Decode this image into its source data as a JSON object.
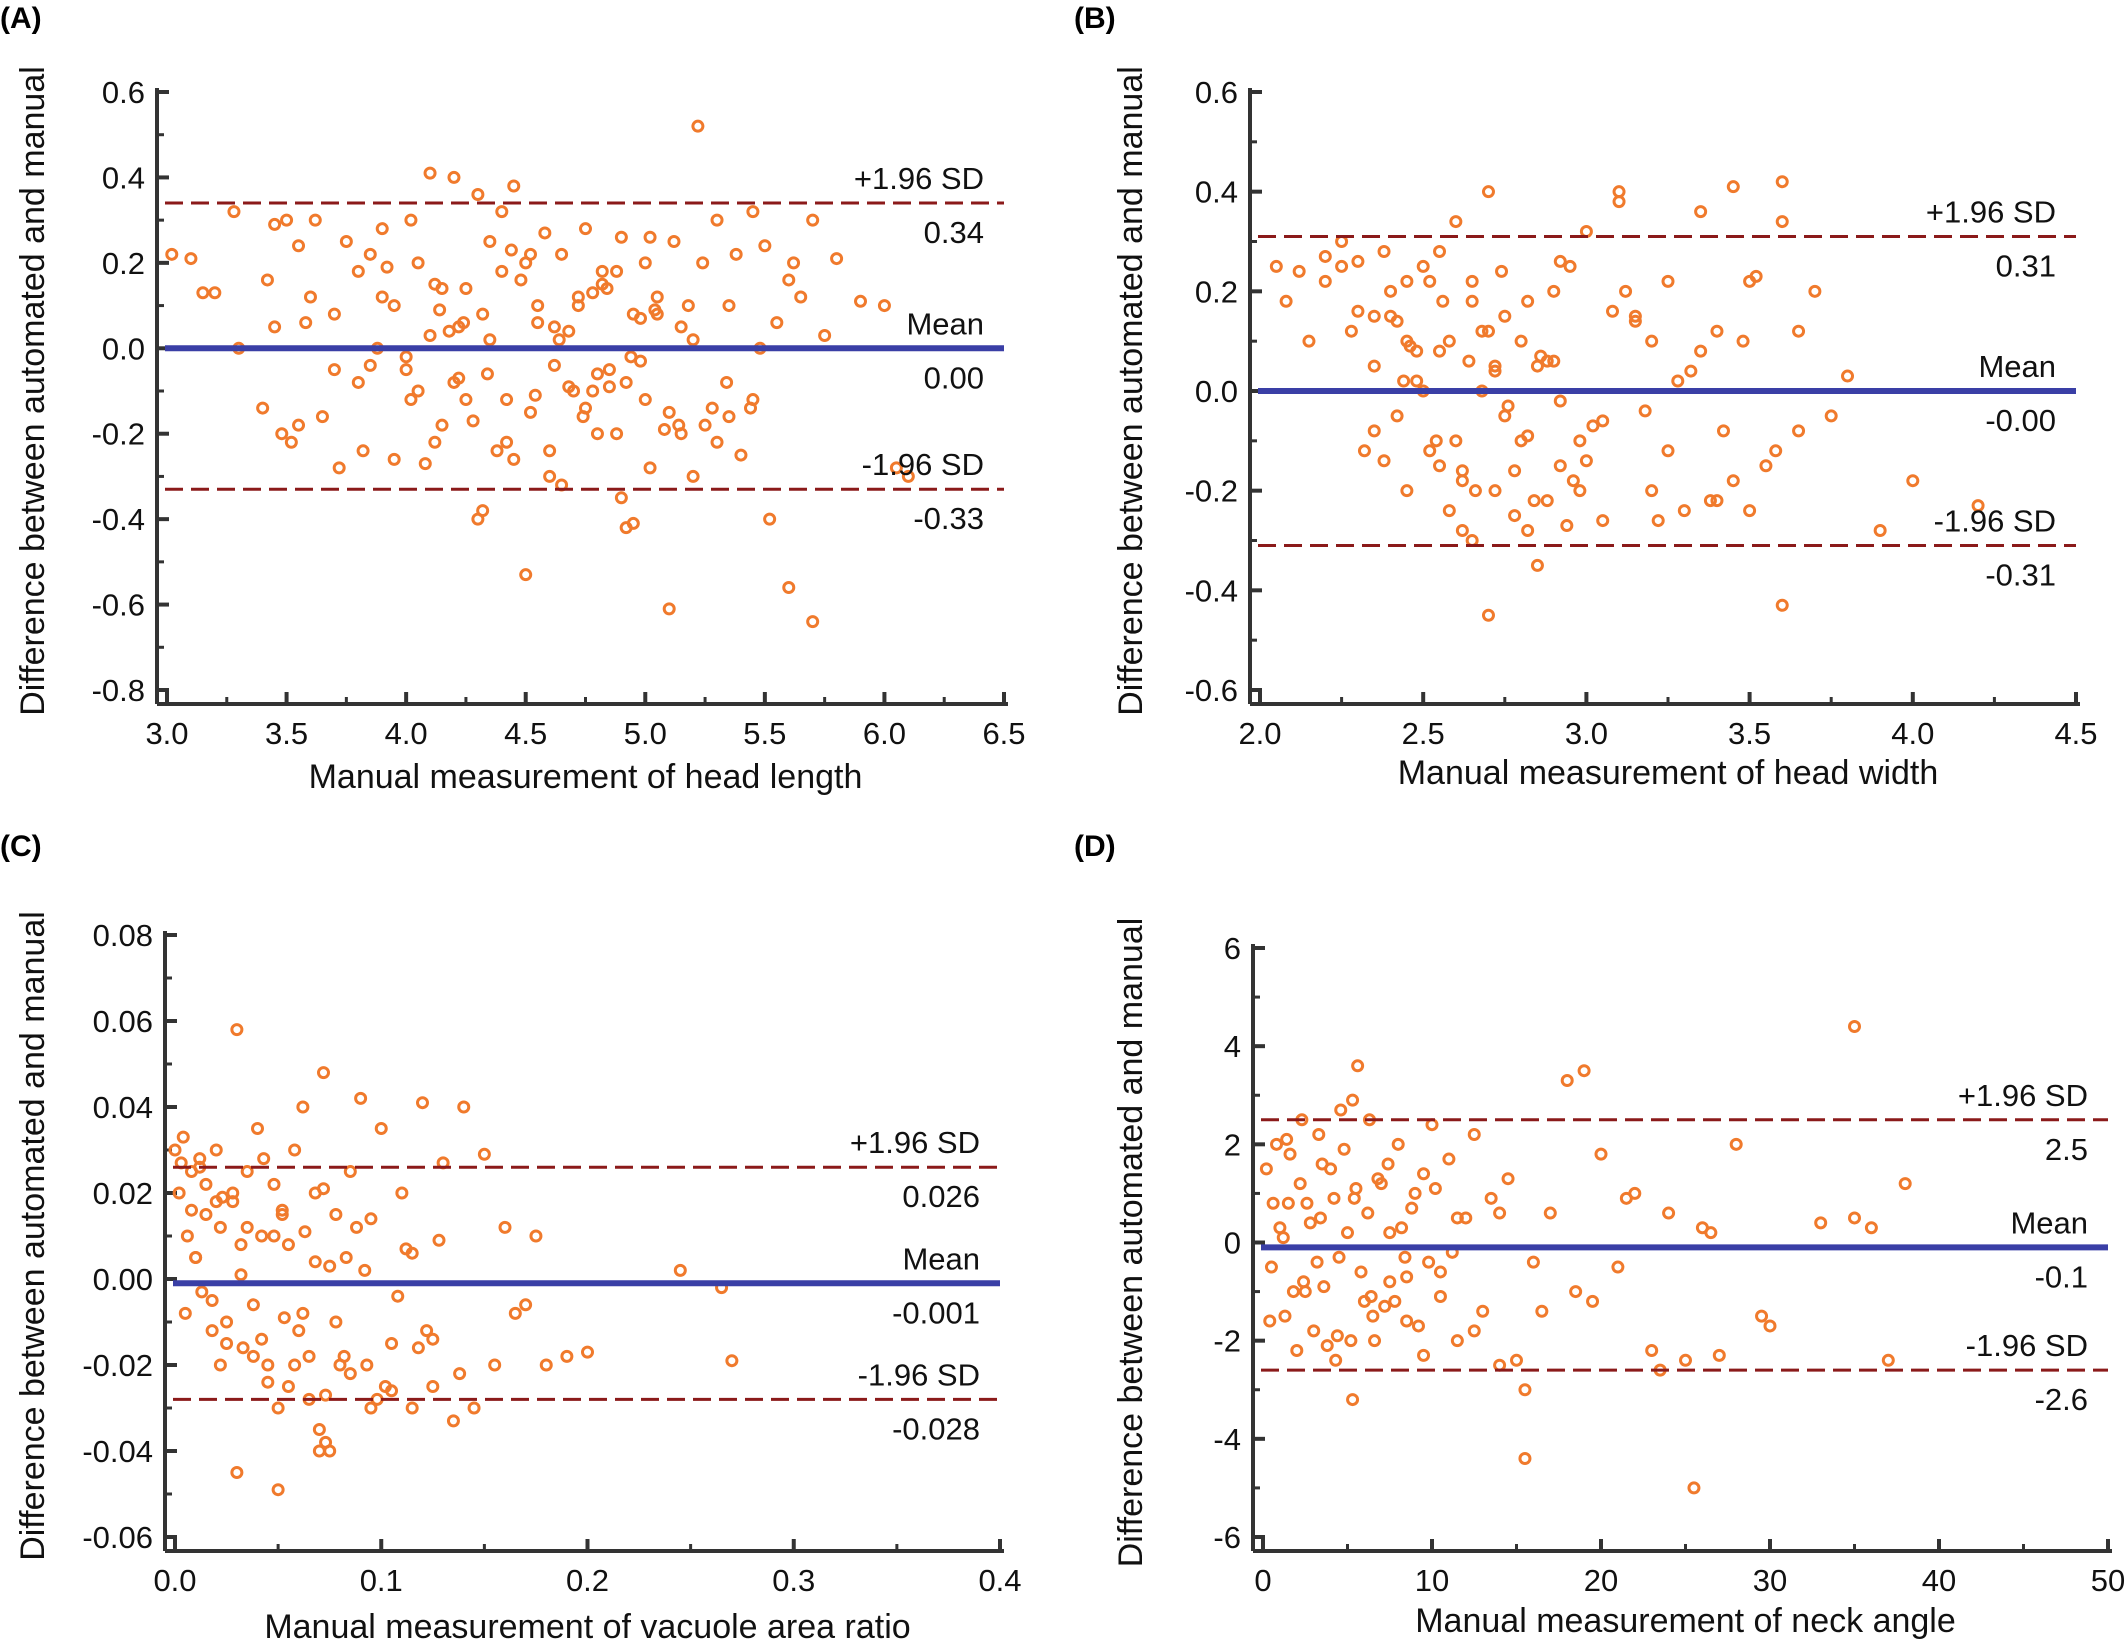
{
  "colors": {
    "points": "#f07a2c",
    "mean_line": "#3a3fa6",
    "sd_line": "#8b1a1a",
    "axis": "#333333"
  },
  "chart_data": [
    {
      "panel": "(A)",
      "type": "scatter",
      "xlabel": "Manual measurement of head length",
      "ylabel": "Difference between automated and manual",
      "xlim": [
        3.0,
        6.5
      ],
      "ylim": [
        -0.8,
        0.6
      ],
      "xticks": [
        "3.0",
        "3.5",
        "4.0",
        "4.5",
        "5.0",
        "5.5",
        "6.0",
        "6.5"
      ],
      "yticks": [
        "-0.8",
        "-0.6",
        "-0.4",
        "-0.2",
        "0.0",
        "0.2",
        "0.4",
        "0.6"
      ],
      "mean": {
        "value": 0.0,
        "label": "Mean",
        "value_label": "0.00"
      },
      "upper_sd": {
        "value": 0.34,
        "label": "+1.96 SD",
        "value_label": "0.34"
      },
      "lower_sd": {
        "value": -0.33,
        "label": "-1.96 SD",
        "value_label": "-0.33"
      },
      "points_x": [
        3.02,
        3.1,
        3.15,
        3.2,
        3.28,
        3.3,
        3.4,
        3.42,
        3.45,
        3.48,
        3.5,
        3.52,
        3.55,
        3.6,
        3.62,
        3.7,
        3.75,
        3.8,
        3.82,
        3.85,
        3.9,
        3.95,
        4.0,
        4.02,
        4.05,
        4.1,
        4.12,
        4.15,
        4.2,
        4.22,
        4.25,
        4.3,
        4.32,
        4.35,
        4.4,
        4.42,
        4.45,
        4.5,
        4.52,
        4.55,
        4.6,
        4.62,
        4.65,
        4.7,
        4.72,
        4.75,
        4.8,
        4.82,
        4.85,
        4.9,
        4.92,
        4.95,
        5.0,
        5.02,
        5.05,
        5.1,
        5.12,
        5.15,
        5.2,
        5.22,
        5.25,
        5.3,
        5.35,
        5.4,
        5.45,
        5.5,
        5.55,
        5.6,
        5.65,
        5.7,
        5.75,
        5.8,
        5.9,
        6.0,
        6.05,
        6.1,
        4.5,
        5.1,
        5.6,
        5.7,
        5.2,
        3.55,
        3.45,
        4.3,
        4.9,
        4.95,
        4.65,
        4.1,
        4.2,
        4.4,
        4.0,
        3.9,
        3.8,
        3.7,
        4.55,
        4.75,
        5.05,
        5.3,
        5.45,
        5.62,
        3.65,
        3.58,
        4.15,
        4.45,
        4.85,
        5.15,
        5.35,
        5.52,
        4.05,
        4.25,
        4.6,
        4.8,
        5.0,
        4.35,
        3.95,
        3.72,
        3.88,
        4.68,
        4.78,
        4.88,
        4.98,
        5.08,
        5.18,
        5.28,
        5.38,
        5.48,
        4.12,
        4.22,
        4.32,
        4.42,
        4.52,
        4.62,
        4.72,
        4.82,
        4.92,
        5.02,
        4.18,
        4.28,
        4.38,
        4.48,
        4.58,
        4.68,
        4.78,
        4.88,
        4.98,
        3.85,
        3.92,
        4.02,
        4.08,
        4.14,
        4.24,
        4.34,
        4.44,
        4.54,
        4.64,
        4.74,
        4.84,
        4.94,
        5.04,
        5.14,
        5.24,
        5.34,
        5.44
      ],
      "points_y": [
        0.22,
        0.21,
        0.13,
        0.13,
        0.32,
        0.0,
        -0.14,
        0.16,
        0.29,
        -0.2,
        0.3,
        -0.22,
        0.24,
        0.12,
        0.3,
        0.08,
        0.25,
        0.18,
        -0.24,
        0.22,
        0.28,
        0.1,
        -0.05,
        0.3,
        0.2,
        0.41,
        0.15,
        -0.18,
        0.4,
        0.05,
        -0.12,
        0.36,
        -0.38,
        0.25,
        0.32,
        -0.22,
        0.38,
        0.2,
        -0.15,
        0.1,
        -0.3,
        0.05,
        0.22,
        -0.1,
        0.12,
        0.28,
        -0.2,
        0.15,
        -0.05,
        0.26,
        -0.42,
        0.08,
        0.2,
        -0.28,
        0.12,
        -0.15,
        0.25,
        0.05,
        -0.3,
        0.52,
        -0.18,
        0.3,
        0.1,
        -0.25,
        0.32,
        0.24,
        0.06,
        0.16,
        0.12,
        0.3,
        0.03,
        0.21,
        0.11,
        0.1,
        -0.28,
        -0.3,
        -0.53,
        -0.61,
        -0.56,
        -0.64,
        0.02,
        -0.18,
        0.05,
        -0.4,
        -0.35,
        -0.41,
        -0.32,
        0.03,
        -0.08,
        0.18,
        -0.02,
        0.12,
        -0.08,
        -0.05,
        0.06,
        -0.14,
        0.08,
        -0.22,
        -0.12,
        0.2,
        -0.16,
        0.06,
        0.14,
        -0.26,
        -0.09,
        -0.2,
        -0.16,
        -0.4,
        -0.1,
        0.14,
        -0.24,
        -0.06,
        -0.12,
        0.02,
        -0.26,
        -0.28,
        0.0,
        0.04,
        -0.1,
        0.18,
        -0.03,
        -0.19,
        0.1,
        -0.14,
        0.22,
        0.0,
        -0.22,
        -0.07,
        0.08,
        -0.12,
        0.22,
        -0.04,
        0.1,
        0.18,
        -0.08,
        0.26,
        0.04,
        -0.17,
        -0.24,
        0.16,
        0.27,
        -0.09,
        0.13,
        -0.2,
        0.07,
        -0.04,
        0.19,
        -0.12,
        -0.27,
        0.09,
        0.06,
        -0.06,
        0.23,
        -0.11,
        0.02,
        -0.16,
        0.14,
        -0.02,
        0.09,
        -0.18,
        0.2,
        -0.08,
        -0.14,
        0.03,
        -0.22,
        0.11,
        -0.05,
        -0.2
      ]
    },
    {
      "panel": "(B)",
      "type": "scatter",
      "xlabel": "Manual measurement of head width",
      "ylabel": "Difference between automated and manual",
      "xlim": [
        2.0,
        4.5
      ],
      "ylim": [
        -0.6,
        0.6
      ],
      "xticks": [
        "2.0",
        "2.5",
        "3.0",
        "3.5",
        "4.0",
        "4.5"
      ],
      "yticks": [
        "-0.6",
        "-0.4",
        "-0.2",
        "0.0",
        "0.2",
        "0.4",
        "0.6"
      ],
      "mean": {
        "value": 0.0,
        "label": "Mean",
        "value_label": "-0.00"
      },
      "upper_sd": {
        "value": 0.31,
        "label": "+1.96 SD",
        "value_label": "0.31"
      },
      "lower_sd": {
        "value": -0.31,
        "label": "-1.96 SD",
        "value_label": "-0.31"
      },
      "points_x": [
        2.05,
        2.08,
        2.12,
        2.15,
        2.2,
        2.25,
        2.28,
        2.3,
        2.35,
        2.38,
        2.4,
        2.42,
        2.45,
        2.48,
        2.5,
        2.52,
        2.55,
        2.58,
        2.6,
        2.62,
        2.65,
        2.68,
        2.7,
        2.72,
        2.75,
        2.78,
        2.8,
        2.82,
        2.85,
        2.88,
        2.9,
        2.92,
        2.95,
        2.98,
        3.0,
        3.05,
        3.1,
        3.15,
        3.2,
        3.25,
        3.3,
        3.35,
        3.4,
        3.45,
        3.5,
        3.55,
        3.6,
        3.65,
        3.7,
        3.75,
        3.8,
        3.9,
        4.0,
        4.2,
        2.7,
        3.1,
        3.45,
        3.6,
        2.65,
        2.85,
        3.6,
        2.35,
        2.45,
        2.55,
        2.6,
        2.7,
        2.75,
        2.5,
        2.4,
        2.3,
        2.2,
        2.55,
        2.65,
        2.8,
        2.9,
        3.0,
        3.2,
        3.4,
        2.25,
        2.35,
        2.45,
        2.62,
        2.72,
        2.82,
        2.92,
        3.05,
        3.15,
        3.25,
        3.35,
        3.5,
        3.65,
        2.38,
        2.48,
        2.58,
        2.68,
        2.78,
        2.88,
        2.98,
        3.08,
        3.18,
        3.28,
        3.38,
        3.48,
        3.58,
        2.42,
        2.52,
        2.62,
        2.72,
        2.82,
        2.92,
        3.02,
        2.46,
        2.56,
        2.66,
        2.76,
        2.86,
        2.96,
        3.12,
        3.22,
        3.32,
        3.42,
        3.52,
        2.32,
        2.44,
        2.54,
        2.64,
        2.74,
        2.84,
        2.94
      ],
      "points_y": [
        0.25,
        0.18,
        0.24,
        0.1,
        0.22,
        0.3,
        0.12,
        0.26,
        0.05,
        0.28,
        0.15,
        -0.05,
        0.22,
        0.08,
        0.25,
        -0.12,
        0.28,
        0.1,
        0.34,
        -0.18,
        0.22,
        0.0,
        0.4,
        -0.2,
        0.15,
        -0.25,
        0.1,
        -0.28,
        0.05,
        -0.22,
        0.2,
        -0.15,
        0.25,
        -0.1,
        0.32,
        -0.26,
        0.38,
        0.15,
        -0.2,
        0.22,
        -0.24,
        0.36,
        0.12,
        -0.18,
        0.22,
        -0.15,
        0.34,
        0.12,
        0.2,
        -0.05,
        0.03,
        -0.28,
        -0.18,
        -0.23,
        -0.45,
        0.4,
        0.41,
        -0.43,
        -0.3,
        -0.35,
        0.42,
        0.15,
        -0.2,
        0.08,
        -0.1,
        0.12,
        -0.05,
        0.0,
        0.2,
        0.16,
        0.27,
        -0.15,
        0.18,
        -0.1,
        0.06,
        -0.14,
        0.1,
        -0.22,
        0.25,
        -0.08,
        0.1,
        -0.16,
        0.05,
        0.18,
        -0.02,
        -0.06,
        0.14,
        -0.12,
        0.08,
        -0.24,
        -0.08,
        -0.14,
        0.02,
        -0.24,
        0.12,
        -0.16,
        0.06,
        -0.2,
        0.16,
        -0.04,
        0.02,
        -0.22,
        0.1,
        -0.12,
        0.14,
        0.22,
        -0.28,
        0.04,
        -0.09,
        0.26,
        -0.07,
        0.09,
        0.18,
        -0.2,
        -0.03,
        0.07,
        -0.18,
        0.2,
        -0.26,
        0.04,
        -0.08,
        0.23,
        -0.12,
        0.02,
        -0.1,
        0.06,
        0.24,
        -0.22,
        -0.27,
        0.13
      ]
    },
    {
      "panel": "(C)",
      "type": "scatter",
      "xlabel": "Manual measurement of vacuole area ratio",
      "ylabel": "Difference between automated and manual",
      "xlim": [
        0.0,
        0.4
      ],
      "ylim": [
        -0.06,
        0.08
      ],
      "xticks": [
        "0.0",
        "0.1",
        "0.2",
        "0.3",
        "0.4"
      ],
      "yticks": [
        "-0.06",
        "-0.04",
        "-0.02",
        "0.00",
        "0.02",
        "0.04",
        "0.06",
        "0.08"
      ],
      "mean": {
        "value": -0.001,
        "label": "Mean",
        "value_label": "-0.001"
      },
      "upper_sd": {
        "value": 0.026,
        "label": "+1.96 SD",
        "value_label": "0.026"
      },
      "lower_sd": {
        "value": -0.028,
        "label": "-1.96 SD",
        "value_label": "-0.028"
      },
      "points_x": [
        0.0,
        0.002,
        0.004,
        0.006,
        0.008,
        0.01,
        0.012,
        0.015,
        0.018,
        0.02,
        0.022,
        0.025,
        0.028,
        0.03,
        0.032,
        0.035,
        0.038,
        0.04,
        0.042,
        0.045,
        0.048,
        0.05,
        0.052,
        0.055,
        0.058,
        0.06,
        0.062,
        0.065,
        0.068,
        0.07,
        0.072,
        0.075,
        0.078,
        0.08,
        0.085,
        0.09,
        0.095,
        0.1,
        0.105,
        0.11,
        0.115,
        0.12,
        0.125,
        0.13,
        0.135,
        0.14,
        0.145,
        0.15,
        0.155,
        0.16,
        0.165,
        0.17,
        0.175,
        0.18,
        0.19,
        0.2,
        0.245,
        0.265,
        0.27,
        0.03,
        0.05,
        0.07,
        0.073,
        0.02,
        0.01,
        0.005,
        0.015,
        0.025,
        0.035,
        0.045,
        0.055,
        0.065,
        0.075,
        0.085,
        0.095,
        0.105,
        0.115,
        0.125,
        0.008,
        0.018,
        0.028,
        0.038,
        0.048,
        0.058,
        0.068,
        0.078,
        0.088,
        0.098,
        0.108,
        0.118,
        0.128,
        0.138,
        0.012,
        0.022,
        0.032,
        0.042,
        0.052,
        0.062,
        0.072,
        0.082,
        0.092,
        0.102,
        0.112,
        0.122,
        0.003,
        0.013,
        0.023,
        0.033,
        0.043,
        0.053,
        0.063,
        0.073,
        0.083,
        0.093
      ],
      "points_y": [
        0.03,
        0.02,
        0.033,
        0.01,
        0.025,
        0.005,
        0.028,
        0.015,
        -0.005,
        0.03,
        0.012,
        -0.01,
        0.02,
        0.058,
        0.008,
        0.025,
        -0.018,
        0.035,
        0.01,
        -0.02,
        0.022,
        -0.03,
        0.015,
        -0.025,
        0.03,
        -0.012,
        0.04,
        -0.028,
        0.02,
        -0.035,
        0.048,
        -0.04,
        0.015,
        -0.02,
        0.025,
        0.042,
        -0.03,
        0.035,
        -0.015,
        0.02,
        -0.03,
        0.041,
        -0.025,
        0.027,
        -0.033,
        0.04,
        -0.03,
        0.029,
        -0.02,
        0.012,
        -0.008,
        -0.006,
        0.01,
        -0.02,
        -0.018,
        -0.017,
        0.002,
        -0.002,
        -0.019,
        -0.045,
        -0.049,
        -0.04,
        -0.038,
        0.018,
        0.005,
        -0.008,
        0.022,
        -0.015,
        0.012,
        -0.024,
        0.008,
        -0.018,
        0.003,
        -0.022,
        0.014,
        -0.026,
        0.006,
        -0.014,
        0.016,
        -0.012,
        0.018,
        -0.006,
        0.01,
        -0.02,
        0.004,
        -0.01,
        0.012,
        -0.028,
        -0.004,
        -0.016,
        0.009,
        -0.022,
        0.026,
        -0.02,
        0.001,
        -0.014,
        0.016,
        -0.008,
        0.021,
        -0.018,
        0.002,
        -0.025,
        0.007,
        -0.012,
        0.027,
        -0.003,
        0.019,
        -0.016,
        0.028,
        -0.009,
        0.011,
        -0.027,
        0.005,
        -0.02
      ]
    },
    {
      "panel": "(D)",
      "type": "scatter",
      "xlabel": "Manual measurement of neck angle",
      "ylabel": "Difference between automated and manual",
      "xlim": [
        0,
        50
      ],
      "ylim": [
        -6,
        6
      ],
      "xticks": [
        "0",
        "10",
        "20",
        "30",
        "40",
        "50"
      ],
      "yticks": [
        "-6",
        "-4",
        "-2",
        "0",
        "2",
        "4",
        "6"
      ],
      "mean": {
        "value": -0.1,
        "label": "Mean",
        "value_label": "-0.1"
      },
      "upper_sd": {
        "value": 2.5,
        "label": "+1.96 SD",
        "value_label": "2.5"
      },
      "lower_sd": {
        "value": -2.6,
        "label": "-1.96 SD",
        "value_label": "-2.6"
      },
      "points_x": [
        0.2,
        0.5,
        0.8,
        1.0,
        1.3,
        1.6,
        2.0,
        2.3,
        2.6,
        3.0,
        3.3,
        3.6,
        4.0,
        4.3,
        4.6,
        5.0,
        5.3,
        5.6,
        6.0,
        6.3,
        6.6,
        7.0,
        7.5,
        8.0,
        8.5,
        9.0,
        9.5,
        10.0,
        10.5,
        11.0,
        11.5,
        12.0,
        12.5,
        13.0,
        13.5,
        14.0,
        14.5,
        15.0,
        15.5,
        16.0,
        17.0,
        18.0,
        19.0,
        20.0,
        21.0,
        22.0,
        23.0,
        24.0,
        25.0,
        26.0,
        27.0,
        28.0,
        30.0,
        33.0,
        35.0,
        36.0,
        38.0,
        15.5,
        25.5,
        35.0,
        5.3,
        18.5,
        1.5,
        2.5,
        3.5,
        4.5,
        5.5,
        6.5,
        7.5,
        8.5,
        9.5,
        10.5,
        11.5,
        12.5,
        1.2,
        2.2,
        3.2,
        4.2,
        5.2,
        6.2,
        7.2,
        8.2,
        9.2,
        10.2,
        11.2,
        0.6,
        1.8,
        2.8,
        3.8,
        4.8,
        5.8,
        6.8,
        7.8,
        8.8,
        9.8,
        0.4,
        1.4,
        2.4,
        3.4,
        4.4,
        5.4,
        6.4,
        7.4,
        8.4,
        14.0,
        16.5,
        19.5,
        21.5,
        23.5,
        26.5,
        29.5,
        37.0
      ],
      "points_y": [
        1.5,
        -0.5,
        2.0,
        0.3,
        -1.5,
        1.8,
        -2.2,
        2.5,
        0.8,
        -1.8,
        2.2,
        -0.9,
        1.5,
        -2.4,
        2.7,
        0.2,
        -3.2,
        3.6,
        -1.2,
        2.5,
        -2.0,
        1.2,
        -0.8,
        2.0,
        -1.6,
        1.0,
        -2.3,
        2.4,
        -0.6,
        1.7,
        -2.0,
        0.5,
        2.2,
        -1.4,
        0.9,
        -2.5,
        1.3,
        -2.4,
        -3.0,
        -0.4,
        0.6,
        3.3,
        3.5,
        1.8,
        -0.5,
        1.0,
        -2.2,
        0.6,
        -2.4,
        0.3,
        -2.3,
        2.0,
        -1.7,
        0.4,
        0.5,
        0.3,
        1.2,
        -4.4,
        -5.0,
        4.4,
        2.9,
        -1.0,
        0.8,
        -1.0,
        1.6,
        -0.3,
        1.1,
        -1.5,
        0.2,
        -0.7,
        1.4,
        -1.1,
        0.5,
        -1.8,
        0.1,
        1.2,
        -0.4,
        0.9,
        -2.0,
        0.6,
        -1.3,
        0.3,
        -1.7,
        1.1,
        -0.2,
        0.8,
        -1.0,
        0.4,
        -2.1,
        1.9,
        -0.6,
        1.3,
        -1.2,
        0.7,
        -0.4,
        -1.6,
        2.1,
        -0.8,
        0.5,
        -1.9,
        0.9,
        -1.1,
        1.6,
        -0.3,
        0.6,
        -1.4,
        -1.2,
        0.9,
        -2.6,
        0.2,
        -1.5,
        -2.4,
        -0.9,
        -1.3
      ]
    }
  ]
}
